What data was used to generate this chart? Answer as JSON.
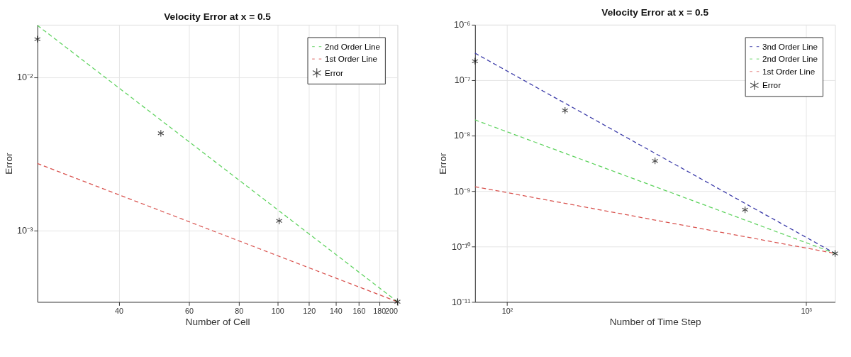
{
  "chart_data": [
    {
      "type": "line",
      "title": "Velocity Error at x = 0.5",
      "xlabel": "Number of Cell",
      "ylabel": "Error",
      "log": "xy",
      "grid": true,
      "legend": "top right",
      "xlim": [
        25,
        200
      ],
      "xticks": [
        40,
        60,
        80,
        100,
        120,
        140,
        160,
        180,
        200
      ],
      "ylim": [
        0.00034,
        0.022
      ],
      "yticks": [
        {
          "value": 0.001,
          "label": "10⁻³"
        },
        {
          "value": 0.01,
          "label": "10⁻²"
        }
      ],
      "series": [
        {
          "name": "2nd Order Line",
          "line_style": "dashed",
          "color": "#5fd35f",
          "x": [
            25,
            200
          ],
          "values": [
            0.0218,
            0.000341
          ]
        },
        {
          "name": "1st Order Line",
          "line_style": "dashed",
          "color": "#d9534f",
          "x": [
            25,
            200
          ],
          "values": [
            0.00273,
            0.000341
          ]
        },
        {
          "name": "Error",
          "type": "scatter",
          "marker": "cross",
          "color": "#000000",
          "x": [
            25,
            51,
            101,
            200
          ],
          "values": [
            0.0177,
            0.0043,
            0.00115,
            0.000341
          ]
        }
      ]
    },
    {
      "type": "line",
      "title": "Velocity Error at x = 0.5",
      "xlabel": "Number of Time Step",
      "ylabel": "Error",
      "log": "xy",
      "grid": true,
      "legend": "top right",
      "xlim": [
        78.125,
        1250
      ],
      "xticks": [
        {
          "value": 100,
          "label": "10²"
        },
        {
          "value": 1000,
          "label": "10³"
        }
      ],
      "ylim": [
        1e-11,
        1e-06
      ],
      "yticks": [
        {
          "value": 1e-11,
          "label": "10⁻¹¹"
        },
        {
          "value": 1e-10,
          "label": "10⁻¹⁰"
        },
        {
          "value": 1e-09,
          "label": "10⁻⁹"
        },
        {
          "value": 1e-08,
          "label": "10⁻⁸"
        },
        {
          "value": 1e-07,
          "label": "10⁻⁷"
        },
        {
          "value": 1e-06,
          "label": "10⁻⁶"
        }
      ],
      "series": [
        {
          "name": "3nd Order Line",
          "line_style": "dashed",
          "color": "#3a3aa8",
          "x": [
            78.125,
            1250
          ],
          "values": [
            3.07e-07,
            7.5e-11
          ]
        },
        {
          "name": "2nd Order Line",
          "line_style": "dashed",
          "color": "#5fd35f",
          "x": [
            78.125,
            1250
          ],
          "values": [
            1.92e-08,
            7.5e-11
          ]
        },
        {
          "name": "1st Order Line",
          "line_style": "dashed",
          "color": "#d9534f",
          "x": [
            78.125,
            1250
          ],
          "values": [
            1.2e-09,
            7.5e-11
          ]
        },
        {
          "name": "Error",
          "type": "scatter",
          "marker": "cross",
          "color": "#000000",
          "x": [
            78.125,
            156.25,
            312.5,
            625,
            1250
          ],
          "values": [
            2.2e-07,
            2.84e-08,
            3.5e-09,
            4.6e-10,
            7.5e-11
          ]
        }
      ]
    }
  ]
}
